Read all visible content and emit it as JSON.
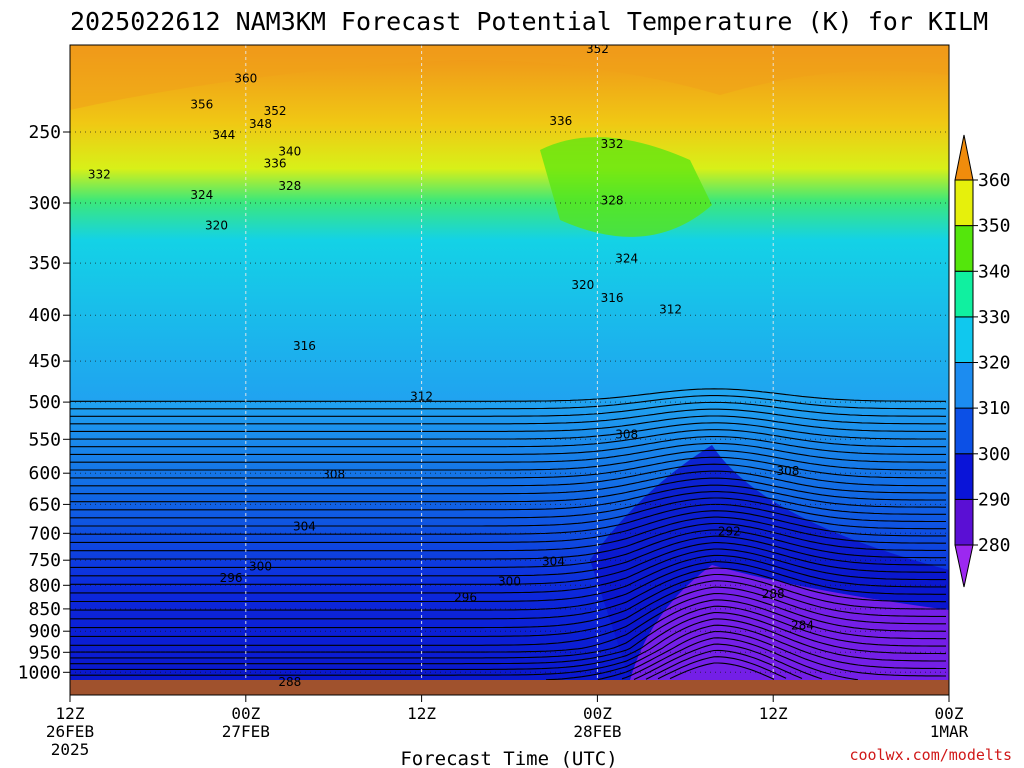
{
  "chart_data": {
    "type": "heatmap",
    "title": "2025022612 NAM3KM Forecast Potential Temperature (K) for KILM",
    "xlabel": "Forecast Time (UTC)",
    "ylabel": "",
    "y_scale": "log",
    "y_inverted": true,
    "y_range": [
      200,
      1060
    ],
    "x_range_hours": [
      0,
      60
    ],
    "y_ticks": [
      250,
      300,
      350,
      400,
      450,
      500,
      550,
      600,
      650,
      700,
      750,
      800,
      850,
      900,
      950,
      1000
    ],
    "x_ticks": [
      {
        "hour": 0,
        "line1": "12Z",
        "line2": "26FEB",
        "line3": "2025"
      },
      {
        "hour": 12,
        "line1": "00Z",
        "line2": "27FEB",
        "line3": ""
      },
      {
        "hour": 24,
        "line1": "12Z",
        "line2": "",
        "line3": ""
      },
      {
        "hour": 36,
        "line1": "00Z",
        "line2": "28FEB",
        "line3": ""
      },
      {
        "hour": 48,
        "line1": "12Z",
        "line2": "",
        "line3": ""
      },
      {
        "hour": 60,
        "line1": "00Z",
        "line2": "1MAR",
        "line3": ""
      }
    ],
    "grid": true,
    "colorbar": {
      "levels": [
        280,
        290,
        300,
        310,
        320,
        330,
        340,
        350,
        360
      ],
      "labels": [
        "280",
        "290",
        "300",
        "310",
        "320",
        "330",
        "340",
        "350",
        "360"
      ],
      "colors": [
        "#9c28f0",
        "#5a0fd4",
        "#0a14d8",
        "#0c50e6",
        "#1c8cf0",
        "#10c8ee",
        "#10f0a0",
        "#54e60c",
        "#e6f00c",
        "#f0c80c",
        "#f08c0c"
      ],
      "extend": "both",
      "placement": "right"
    },
    "series": [
      {
        "values": [
          [
            0,
            332
          ],
          [
            6,
            330
          ],
          [
            12,
            325
          ],
          [
            18,
            323
          ],
          [
            24,
            322
          ],
          [
            30,
            325
          ],
          [
            36,
            330
          ],
          [
            40,
            333
          ],
          [
            44,
            330
          ],
          [
            48,
            322
          ],
          [
            54,
            318
          ],
          [
            60,
            316
          ]
        ]
      },
      {
        "values": [
          [
            0,
            315
          ],
          [
            6,
            315
          ],
          [
            12,
            314
          ],
          [
            18,
            312
          ],
          [
            24,
            310
          ],
          [
            30,
            306
          ],
          [
            36,
            302
          ],
          [
            40,
            296
          ],
          [
            44,
            292
          ],
          [
            48,
            302
          ],
          [
            54,
            306
          ],
          [
            60,
            307
          ]
        ]
      },
      {
        "values": [
          [
            0,
            298
          ],
          [
            6,
            298
          ],
          [
            12,
            297
          ],
          [
            18,
            296
          ],
          [
            24,
            295
          ],
          [
            30,
            293
          ],
          [
            36,
            291
          ],
          [
            40,
            289
          ],
          [
            44,
            285
          ],
          [
            48,
            284
          ],
          [
            54,
            284
          ],
          [
            60,
            284
          ]
        ]
      }
    ],
    "contour_labels": [
      {
        "text": "352",
        "hour": 36.0,
        "p": 202
      },
      {
        "text": "360",
        "hour": 12.0,
        "p": 218
      },
      {
        "text": "356",
        "hour": 9.0,
        "p": 233
      },
      {
        "text": "352",
        "hour": 14.0,
        "p": 237
      },
      {
        "text": "348",
        "hour": 13.0,
        "p": 245
      },
      {
        "text": "344",
        "hour": 10.5,
        "p": 252
      },
      {
        "text": "336",
        "hour": 33.5,
        "p": 243
      },
      {
        "text": "340",
        "hour": 15.0,
        "p": 263
      },
      {
        "text": "332",
        "hour": 37.0,
        "p": 258
      },
      {
        "text": "336",
        "hour": 14.0,
        "p": 271
      },
      {
        "text": "332",
        "hour": 2.0,
        "p": 279
      },
      {
        "text": "328",
        "hour": 15.0,
        "p": 287
      },
      {
        "text": "324",
        "hour": 9.0,
        "p": 294
      },
      {
        "text": "328",
        "hour": 37.0,
        "p": 298
      },
      {
        "text": "320",
        "hour": 10.0,
        "p": 318
      },
      {
        "text": "324",
        "hour": 38.0,
        "p": 346
      },
      {
        "text": "320",
        "hour": 35.0,
        "p": 370
      },
      {
        "text": "316",
        "hour": 37.0,
        "p": 383
      },
      {
        "text": "312",
        "hour": 41.0,
        "p": 394
      },
      {
        "text": "316",
        "hour": 16.0,
        "p": 433
      },
      {
        "text": "312",
        "hour": 24.0,
        "p": 493
      },
      {
        "text": "308",
        "hour": 38.0,
        "p": 543
      },
      {
        "text": "308",
        "hour": 18.0,
        "p": 602
      },
      {
        "text": "308",
        "hour": 49.0,
        "p": 597
      },
      {
        "text": "304",
        "hour": 16.0,
        "p": 688
      },
      {
        "text": "292",
        "hour": 45.0,
        "p": 697
      },
      {
        "text": "304",
        "hour": 33.0,
        "p": 753
      },
      {
        "text": "300",
        "hour": 13.0,
        "p": 762
      },
      {
        "text": "296",
        "hour": 11.0,
        "p": 785
      },
      {
        "text": "300",
        "hour": 30.0,
        "p": 792
      },
      {
        "text": "296",
        "hour": 27.0,
        "p": 825
      },
      {
        "text": "288",
        "hour": 48.0,
        "p": 818
      },
      {
        "text": "284",
        "hour": 50.0,
        "p": 887
      },
      {
        "text": "288",
        "hour": 15.0,
        "p": 1025
      }
    ]
  },
  "credit": "coolwx.com/modelts"
}
